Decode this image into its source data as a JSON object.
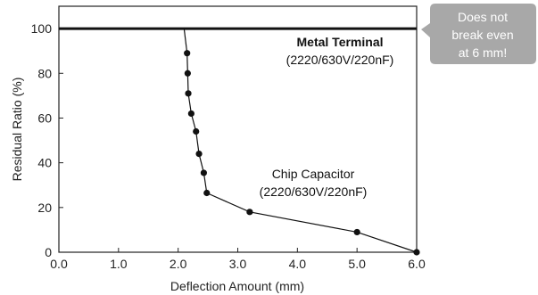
{
  "chart_data": {
    "type": "line",
    "xlabel": "Deflection Amount (mm)",
    "ylabel": "Residual Ratio (%)",
    "xlim": [
      0,
      6
    ],
    "ylim": [
      0,
      110
    ],
    "x_ticks": [
      "0.0",
      "1.0",
      "2.0",
      "3.0",
      "4.0",
      "5.0",
      "6.0"
    ],
    "y_ticks": [
      "0",
      "20",
      "40",
      "60",
      "80",
      "100"
    ],
    "grid": false,
    "series": [
      {
        "name_line1": "Metal Terminal",
        "name_line2": "(2220/630V/220nF)",
        "color": "#111111",
        "markers": false,
        "x": [
          0,
          6
        ],
        "y": [
          100,
          100
        ]
      },
      {
        "name_line1": "Chip Capacitor",
        "name_line2": "(2220/630V/220nF)",
        "color": "#111111",
        "markers": true,
        "line": {
          "x": [
            2.1,
            2.15
          ],
          "y": [
            100,
            89
          ]
        },
        "x": [
          2.15,
          2.16,
          2.17,
          2.22,
          2.3,
          2.35,
          2.43,
          2.48,
          3.2,
          5.0,
          6.0
        ],
        "y": [
          89,
          80,
          71,
          62,
          54,
          44,
          35.5,
          26.5,
          18,
          9,
          0
        ]
      }
    ],
    "annotation": {
      "lines": [
        "Does not",
        "break even",
        "at 6 mm!"
      ],
      "color": "#a8a8a8"
    }
  }
}
